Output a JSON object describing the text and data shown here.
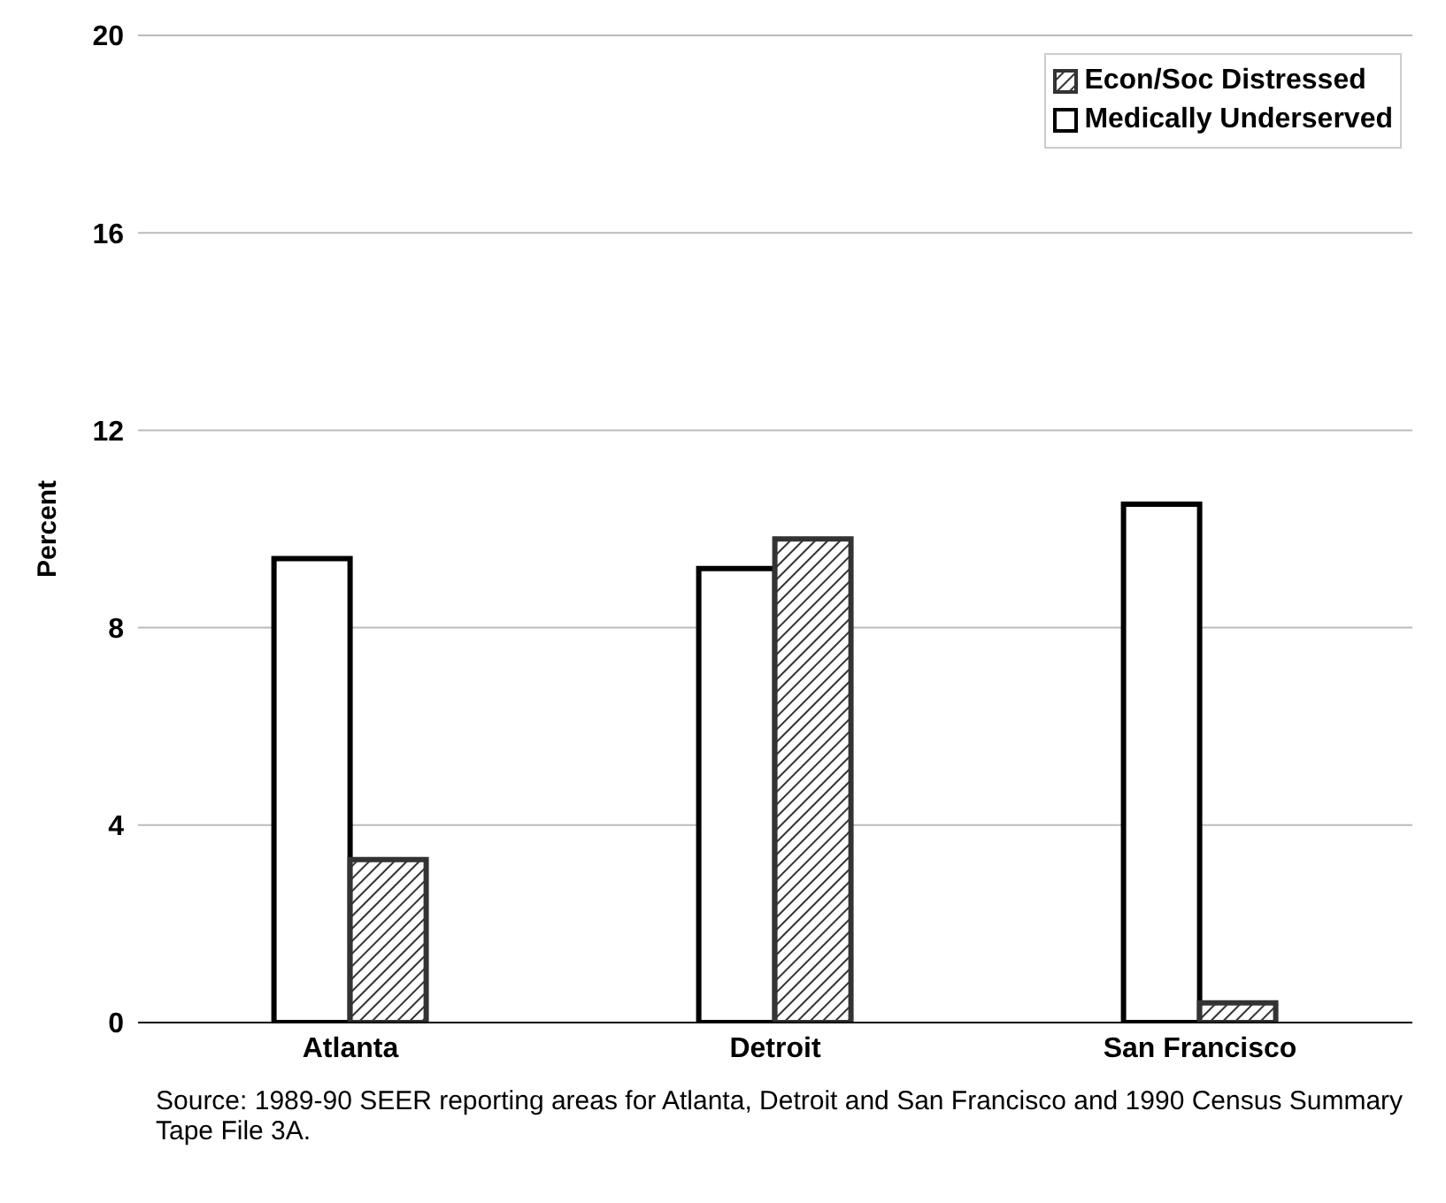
{
  "chart_data": {
    "type": "bar",
    "ylabel": "Percent",
    "categories": [
      "Atlanta",
      "Detroit",
      "San Francisco"
    ],
    "series": [
      {
        "name": "Medically Underserved",
        "color": "#000000",
        "values": [
          9.4,
          9.2,
          10.5
        ]
      },
      {
        "name": "Econ/Soc Distressed",
        "color": "#333333",
        "values": [
          3.3,
          9.8,
          0.4
        ]
      }
    ],
    "ylim": [
      0,
      20
    ],
    "yticks": [
      0,
      4,
      8,
      12,
      16,
      20
    ],
    "grid": "y",
    "legend": "top right",
    "annotations": [
      "Source: 1989-90 SEER reporting areas for Atlanta, Detroit and San Francisco and 1990 Census Summary Tape File 3A."
    ]
  }
}
